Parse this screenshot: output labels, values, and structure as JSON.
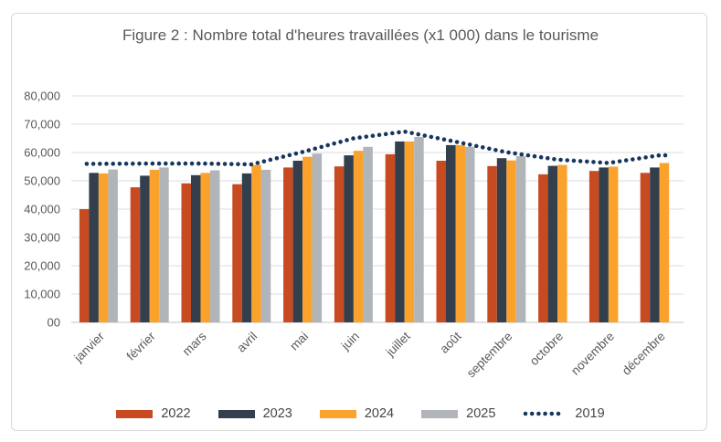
{
  "chart_data": {
    "type": "bar",
    "title": "Figure 2 : Nombre total d'heures travaillées (x1 000) dans le tourisme",
    "xlabel": "",
    "ylabel": "",
    "ylim": [
      0,
      80000
    ],
    "grid": true,
    "legend_position": "bottom",
    "y_tick_labels": [
      "80,000",
      "70,000",
      "60,000",
      "50,000",
      "40,000",
      "30,000",
      "20,000",
      "10,000",
      "00"
    ],
    "categories": [
      "janvier",
      "février",
      "mars",
      "avril",
      "mai",
      "juin",
      "juillet",
      "août",
      "septembre",
      "octobre",
      "novembre",
      "décembre"
    ],
    "series": [
      {
        "name": "2022",
        "type": "bar",
        "color": "#C74A20",
        "values": [
          40000,
          47700,
          49100,
          48800,
          54700,
          55100,
          59400,
          57100,
          55200,
          52300,
          53500,
          52800
        ]
      },
      {
        "name": "2023",
        "type": "bar",
        "color": "#333F4D",
        "values": [
          52800,
          51800,
          52000,
          52600,
          57100,
          59000,
          63900,
          62600,
          58000,
          55300,
          54700,
          54700
        ]
      },
      {
        "name": "2024",
        "type": "bar",
        "color": "#FBA22D",
        "values": [
          52600,
          53900,
          52800,
          55600,
          58500,
          60600,
          63900,
          62600,
          57200,
          55600,
          55000,
          56300
        ]
      },
      {
        "name": "2025",
        "type": "bar",
        "color": "#B1B5BA",
        "values": [
          54000,
          54700,
          53700,
          53900,
          59600,
          62000,
          65500,
          62000,
          58700,
          null,
          null,
          null
        ]
      },
      {
        "name": "2019",
        "type": "dotted-line",
        "color": "#17365D",
        "values": [
          56000,
          56100,
          56100,
          55800,
          60200,
          65000,
          67400,
          63800,
          60100,
          57500,
          56300,
          59000
        ]
      }
    ],
    "axis_text_color": "#595959",
    "gridline_color": "#DCDCDC",
    "axis_line_color": "#C4C4C4"
  }
}
